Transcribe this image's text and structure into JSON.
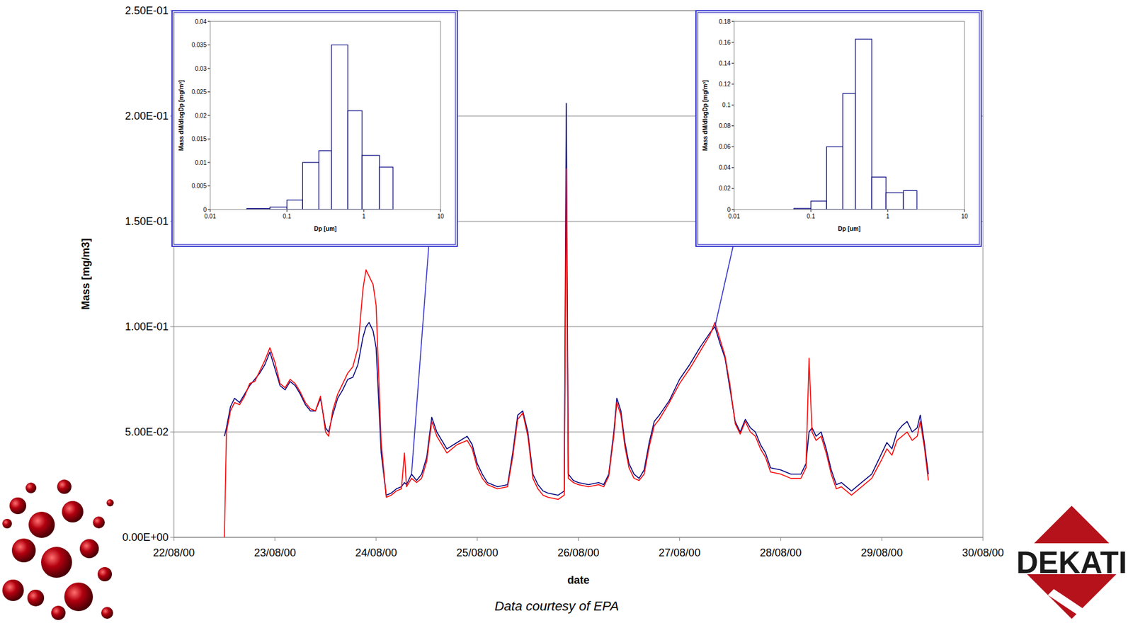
{
  "chart_data": [
    {
      "type": "line",
      "x": [
        22.5,
        22.52,
        22.56,
        22.6,
        22.65,
        22.7,
        22.75,
        22.8,
        22.85,
        22.9,
        22.95,
        23.0,
        23.05,
        23.1,
        23.15,
        23.2,
        23.25,
        23.3,
        23.35,
        23.4,
        23.45,
        23.5,
        23.53,
        23.57,
        23.62,
        23.67,
        23.72,
        23.77,
        23.82,
        23.87,
        23.9,
        23.93,
        23.97,
        24.0,
        24.05,
        24.1,
        24.15,
        24.2,
        24.25,
        24.28,
        24.3,
        24.35,
        24.4,
        24.45,
        24.5,
        24.55,
        24.6,
        24.7,
        24.8,
        24.9,
        24.95,
        25.0,
        25.05,
        25.1,
        25.2,
        25.3,
        25.35,
        25.4,
        25.45,
        25.5,
        25.55,
        25.6,
        25.65,
        25.7,
        25.8,
        25.86,
        25.88,
        25.9,
        25.95,
        26.0,
        26.1,
        26.2,
        26.25,
        26.3,
        26.35,
        26.38,
        26.42,
        26.46,
        26.5,
        26.55,
        26.6,
        26.65,
        26.7,
        26.75,
        26.8,
        26.9,
        27.0,
        27.1,
        27.2,
        27.3,
        27.35,
        27.4,
        27.45,
        27.5,
        27.55,
        27.6,
        27.65,
        27.7,
        27.75,
        27.8,
        27.85,
        27.9,
        28.0,
        28.1,
        28.2,
        28.25,
        28.28,
        28.31,
        28.35,
        28.4,
        28.45,
        28.5,
        28.55,
        28.6,
        28.7,
        28.8,
        28.9,
        29.0,
        29.05,
        29.1,
        29.15,
        29.2,
        29.25,
        29.3,
        29.35,
        29.38,
        29.42,
        29.46
      ],
      "xlim": [
        22,
        30
      ],
      "xticks": [
        {
          "value": 22,
          "label": "22/08/00"
        },
        {
          "value": 23,
          "label": "23/08/00"
        },
        {
          "value": 24,
          "label": "24/08/00"
        },
        {
          "value": 25,
          "label": "25/08/00"
        },
        {
          "value": 26,
          "label": "26/08/00"
        },
        {
          "value": 27,
          "label": "27/08/00"
        },
        {
          "value": 28,
          "label": "28/08/00"
        },
        {
          "value": 29,
          "label": "29/08/00"
        },
        {
          "value": 30,
          "label": "30/08/00"
        }
      ],
      "ylim": [
        0,
        0.25
      ],
      "yticks": [
        {
          "value": 0,
          "label": "0.00E+00"
        },
        {
          "value": 0.05,
          "label": "5.00E-02"
        },
        {
          "value": 0.1,
          "label": "1.00E-01"
        },
        {
          "value": 0.15,
          "label": "1.50E-01"
        },
        {
          "value": 0.2,
          "label": "2.00E-01"
        },
        {
          "value": 0.25,
          "label": "2.50E-01"
        }
      ],
      "xlabel": "date",
      "ylabel": "Mass [mg/m3]",
      "grid": true,
      "caption": "Data courtesy of EPA",
      "logo": "DEKATI",
      "series": [
        {
          "color": "#000080",
          "values": [
            0.048,
            0.052,
            0.062,
            0.066,
            0.064,
            0.068,
            0.072,
            0.075,
            0.078,
            0.082,
            0.088,
            0.08,
            0.072,
            0.07,
            0.074,
            0.072,
            0.068,
            0.063,
            0.06,
            0.06,
            0.066,
            0.052,
            0.05,
            0.058,
            0.066,
            0.07,
            0.075,
            0.076,
            0.082,
            0.095,
            0.1,
            0.102,
            0.098,
            0.09,
            0.04,
            0.02,
            0.021,
            0.023,
            0.024,
            0.026,
            0.025,
            0.03,
            0.027,
            0.03,
            0.038,
            0.057,
            0.05,
            0.042,
            0.045,
            0.048,
            0.044,
            0.035,
            0.03,
            0.026,
            0.024,
            0.025,
            0.04,
            0.058,
            0.06,
            0.05,
            0.03,
            0.025,
            0.022,
            0.021,
            0.02,
            0.022,
            0.206,
            0.03,
            0.027,
            0.026,
            0.025,
            0.026,
            0.025,
            0.03,
            0.05,
            0.066,
            0.06,
            0.045,
            0.035,
            0.03,
            0.028,
            0.032,
            0.045,
            0.055,
            0.058,
            0.065,
            0.075,
            0.082,
            0.09,
            0.097,
            0.1,
            0.092,
            0.085,
            0.07,
            0.055,
            0.05,
            0.056,
            0.052,
            0.05,
            0.044,
            0.04,
            0.033,
            0.032,
            0.03,
            0.03,
            0.035,
            0.05,
            0.052,
            0.048,
            0.05,
            0.042,
            0.032,
            0.025,
            0.026,
            0.022,
            0.026,
            0.03,
            0.04,
            0.045,
            0.042,
            0.05,
            0.053,
            0.055,
            0.05,
            0.052,
            0.058,
            0.045,
            0.03
          ]
        },
        {
          "color": "#ff0000",
          "values": [
            0,
            0.05,
            0.06,
            0.064,
            0.063,
            0.067,
            0.073,
            0.074,
            0.079,
            0.084,
            0.09,
            0.083,
            0.073,
            0.071,
            0.075,
            0.073,
            0.069,
            0.064,
            0.061,
            0.06,
            0.067,
            0.05,
            0.048,
            0.06,
            0.068,
            0.073,
            0.078,
            0.081,
            0.09,
            0.118,
            0.127,
            0.124,
            0.12,
            0.11,
            0.045,
            0.019,
            0.02,
            0.022,
            0.023,
            0.04,
            0.024,
            0.028,
            0.026,
            0.028,
            0.036,
            0.055,
            0.048,
            0.04,
            0.044,
            0.046,
            0.042,
            0.033,
            0.028,
            0.025,
            0.023,
            0.024,
            0.038,
            0.056,
            0.059,
            0.048,
            0.028,
            0.023,
            0.02,
            0.019,
            0.018,
            0.02,
            0.175,
            0.028,
            0.026,
            0.025,
            0.024,
            0.025,
            0.024,
            0.029,
            0.048,
            0.064,
            0.058,
            0.043,
            0.033,
            0.028,
            0.027,
            0.03,
            0.043,
            0.053,
            0.056,
            0.064,
            0.073,
            0.08,
            0.088,
            0.096,
            0.102,
            0.094,
            0.086,
            0.072,
            0.054,
            0.049,
            0.055,
            0.05,
            0.048,
            0.042,
            0.038,
            0.031,
            0.03,
            0.028,
            0.028,
            0.033,
            0.085,
            0.05,
            0.046,
            0.048,
            0.04,
            0.03,
            0.023,
            0.024,
            0.02,
            0.024,
            0.028,
            0.037,
            0.042,
            0.039,
            0.046,
            0.048,
            0.05,
            0.046,
            0.048,
            0.055,
            0.043,
            0.027
          ]
        }
      ]
    },
    {
      "type": "histogram",
      "bins": [
        0.03,
        0.06,
        0.1,
        0.16,
        0.26,
        0.38,
        0.62,
        0.95,
        1.6,
        2.4,
        4,
        6.5,
        10
      ],
      "values": [
        0.0002,
        0.0005,
        0.002,
        0.01,
        0.0125,
        0.035,
        0.021,
        0.0115,
        0.009,
        0,
        0,
        0
      ],
      "color": "#000080",
      "log": "x",
      "grid": false,
      "xlim": [
        0.01,
        10
      ],
      "xticks": [
        0.01,
        0.1,
        1,
        10
      ],
      "ylim": [
        0,
        0.04
      ],
      "yticks": [
        0,
        0.005,
        0.01,
        0.015,
        0.02,
        0.025,
        0.03,
        0.035,
        0.04
      ],
      "xlabel": "Dp [um]",
      "ylabel": "Mass dM/dlogDp [mg/m³]",
      "pointer": {
        "x": 24.35,
        "y": 0.03
      }
    },
    {
      "type": "histogram",
      "bins": [
        0.03,
        0.06,
        0.1,
        0.16,
        0.26,
        0.38,
        0.62,
        0.95,
        1.6,
        2.4,
        4,
        6.5,
        10
      ],
      "values": [
        0,
        0.001,
        0.008,
        0.06,
        0.111,
        0.163,
        0.031,
        0.016,
        0.018,
        0,
        0,
        0
      ],
      "color": "#000080",
      "log": "x",
      "grid": false,
      "xlim": [
        0.01,
        10
      ],
      "xticks": [
        0.01,
        0.1,
        1,
        10
      ],
      "ylim": [
        0,
        0.18
      ],
      "yticks": [
        0,
        0.02,
        0.04,
        0.06,
        0.08,
        0.1,
        0.12,
        0.14,
        0.16,
        0.18
      ],
      "xlabel": "Dp [um]",
      "ylabel": "Mass dM/dlogDp [mg/m³]",
      "pointer": {
        "x": 27.35,
        "y": 0.1
      }
    }
  ]
}
